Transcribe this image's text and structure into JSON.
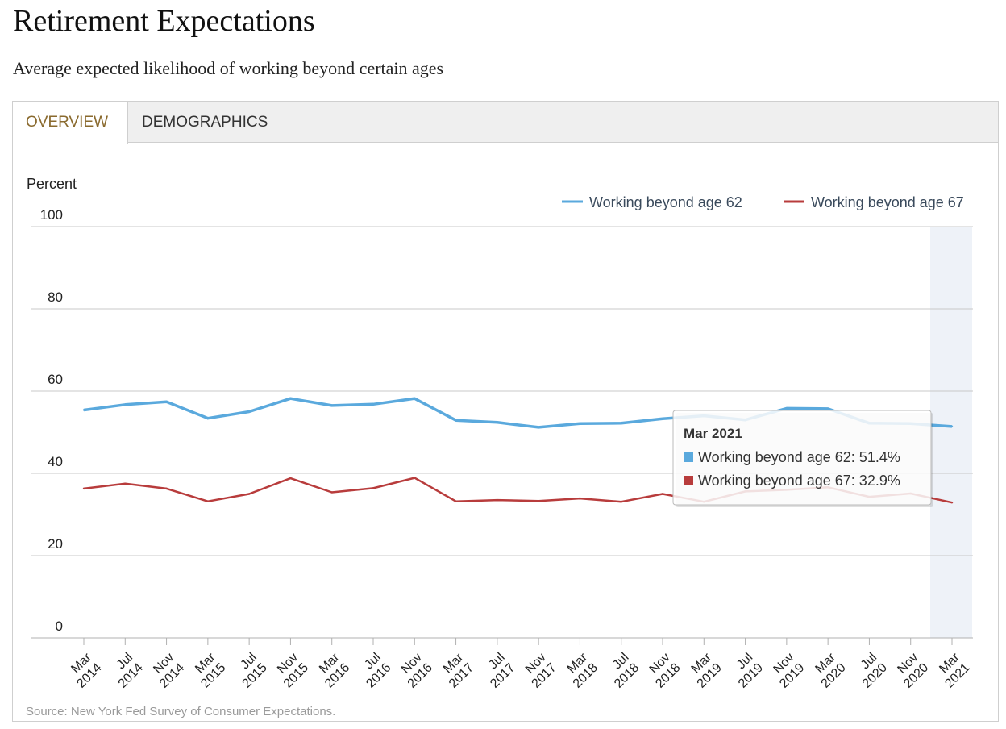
{
  "title": "Retirement Expectations",
  "subtitle": "Average expected likelihood of working beyond certain ages",
  "tabs": [
    {
      "label": "OVERVIEW",
      "active": true
    },
    {
      "label": "DEMOGRAPHICS",
      "active": false
    }
  ],
  "source": "Source: New York Fed Survey of Consumer Expectations.",
  "colors": {
    "series_62": "#5aa9dd",
    "series_67": "#b83c3c",
    "active_tab": "#8a6a2e",
    "highlight": "#eef2f8"
  },
  "chart_data": {
    "type": "line",
    "ylabel": "Percent",
    "ylim": [
      0,
      100
    ],
    "yticks": [
      0,
      20,
      40,
      60,
      80,
      100
    ],
    "grid": true,
    "legend_position": "top-right",
    "categories": [
      [
        "Mar",
        "2014"
      ],
      [
        "Jul",
        "2014"
      ],
      [
        "Nov",
        "2014"
      ],
      [
        "Mar",
        "2015"
      ],
      [
        "Jul",
        "2015"
      ],
      [
        "Nov",
        "2015"
      ],
      [
        "Mar",
        "2016"
      ],
      [
        "Jul",
        "2016"
      ],
      [
        "Nov",
        "2016"
      ],
      [
        "Mar",
        "2017"
      ],
      [
        "Jul",
        "2017"
      ],
      [
        "Nov",
        "2017"
      ],
      [
        "Mar",
        "2018"
      ],
      [
        "Jul",
        "2018"
      ],
      [
        "Nov",
        "2018"
      ],
      [
        "Mar",
        "2019"
      ],
      [
        "Jul",
        "2019"
      ],
      [
        "Nov",
        "2019"
      ],
      [
        "Mar",
        "2020"
      ],
      [
        "Jul",
        "2020"
      ],
      [
        "Nov",
        "2020"
      ],
      [
        "Mar",
        "2021"
      ]
    ],
    "series": [
      {
        "name": "Working beyond age 62",
        "color": "#5aa9dd",
        "values": [
          55.4,
          56.7,
          57.4,
          53.4,
          55.0,
          58.2,
          56.5,
          56.8,
          58.2,
          52.9,
          52.4,
          51.2,
          52.1,
          52.2,
          53.3,
          54.0,
          53.0,
          55.8,
          55.7,
          52.2,
          52.1,
          51.4
        ]
      },
      {
        "name": "Working beyond age 67",
        "color": "#b83c3c",
        "values": [
          36.3,
          37.5,
          36.3,
          33.2,
          35.0,
          38.8,
          35.4,
          36.4,
          38.9,
          33.2,
          33.5,
          33.3,
          33.9,
          33.1,
          35.0,
          33.1,
          35.6,
          36.0,
          36.6,
          34.3,
          35.1,
          32.9
        ]
      }
    ],
    "highlighted_index": 21,
    "tooltip": {
      "title": "Mar 2021",
      "lines": [
        {
          "label": "Working beyond age 62: 51.4%",
          "color": "#5aa9dd"
        },
        {
          "label": "Working beyond age 67: 32.9%",
          "color": "#b83c3c"
        }
      ]
    }
  }
}
